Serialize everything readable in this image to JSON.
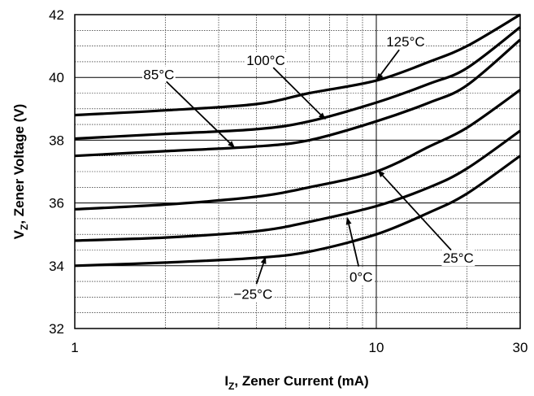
{
  "chart_data": {
    "type": "line",
    "xlabel": {
      "main": "I",
      "sub": "Z",
      "rest": ", Zener Current (mA)"
    },
    "ylabel": {
      "main": "V",
      "sub": "Z",
      "rest": ", Zener Voltage (V)"
    },
    "xscale": "log",
    "xlim": [
      1,
      30
    ],
    "ylim": [
      32,
      42
    ],
    "x_ticks": [
      {
        "value": 1,
        "label": "1"
      },
      {
        "value": 10,
        "label": "10"
      },
      {
        "value": 30,
        "label": "30"
      }
    ],
    "y_ticks": [
      {
        "value": 32,
        "label": "32"
      },
      {
        "value": 34,
        "label": "34"
      },
      {
        "value": 36,
        "label": "36"
      },
      {
        "value": 38,
        "label": "38"
      },
      {
        "value": 40,
        "label": "40"
      },
      {
        "value": 42,
        "label": "42"
      }
    ],
    "grid": true,
    "series": [
      {
        "name": "125°C",
        "x": [
          1,
          2,
          4,
          6,
          10,
          15,
          20,
          30
        ],
        "y": [
          38.8,
          38.95,
          39.15,
          39.5,
          39.9,
          40.5,
          41.0,
          42.0
        ]
      },
      {
        "name": "100°C",
        "x": [
          1,
          2,
          4,
          6,
          10,
          15,
          20,
          30
        ],
        "y": [
          38.05,
          38.2,
          38.35,
          38.6,
          39.2,
          39.8,
          40.3,
          41.6
        ]
      },
      {
        "name": "85°C",
        "x": [
          1,
          2,
          4,
          6,
          10,
          15,
          20,
          30
        ],
        "y": [
          37.5,
          37.65,
          37.8,
          38.0,
          38.6,
          39.2,
          39.75,
          41.2
        ]
      },
      {
        "name": "25°C",
        "x": [
          1,
          2,
          4,
          6,
          10,
          15,
          20,
          30
        ],
        "y": [
          35.8,
          35.95,
          36.2,
          36.5,
          37.0,
          37.8,
          38.4,
          39.6
        ]
      },
      {
        "name": "0°C",
        "x": [
          1,
          2,
          4,
          6,
          10,
          15,
          20,
          30
        ],
        "y": [
          34.8,
          34.9,
          35.1,
          35.4,
          35.9,
          36.5,
          37.1,
          38.3
        ]
      },
      {
        "name": "−25°C",
        "x": [
          1,
          2,
          4,
          6,
          10,
          15,
          20,
          30
        ],
        "y": [
          34.0,
          34.1,
          34.25,
          34.45,
          35.0,
          35.7,
          36.3,
          37.5
        ]
      }
    ],
    "annotations": [
      {
        "series": "125°C",
        "text": "125°C",
        "text_at": [
          12.5,
          41.15
        ],
        "arrow_to": [
          10.0,
          39.9
        ]
      },
      {
        "series": "100°C",
        "text": "100°C",
        "text_at": [
          4.3,
          40.55
        ],
        "arrow_to": [
          6.8,
          38.65
        ]
      },
      {
        "series": "85°C",
        "text": "85°C",
        "text_at": [
          1.9,
          40.1
        ],
        "arrow_to": [
          3.4,
          37.75
        ]
      },
      {
        "series": "25°C",
        "text": "25°C",
        "text_at": [
          18.7,
          34.25
        ],
        "arrow_to": [
          10.1,
          37.05
        ]
      },
      {
        "series": "0°C",
        "text": "0°C",
        "text_at": [
          8.9,
          33.65
        ],
        "arrow_to": [
          8.0,
          35.55
        ]
      },
      {
        "series": "−25°C",
        "text": "−25°C",
        "text_at": [
          3.9,
          33.1
        ],
        "arrow_to": [
          4.3,
          34.3
        ]
      }
    ]
  }
}
